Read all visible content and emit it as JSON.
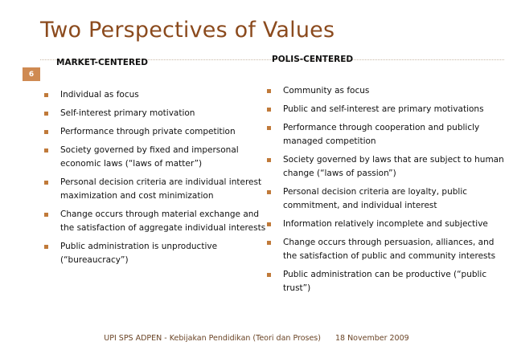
{
  "slide": {
    "title": "Two Perspectives of Values",
    "page_number": "6"
  },
  "left": {
    "heading": "MARKET-CENTERED",
    "items": [
      "Individual as focus",
      "Self-interest primary motivation",
      "Performance through private competition",
      "Society governed by fixed and impersonal economic laws (“laws of matter”)",
      "Personal decision criteria are individual interest maximization and cost minimization",
      "Change occurs through material exchange and the satisfaction of aggregate individual interests",
      "Public administration is unproductive (“bureaucracy”)"
    ]
  },
  "right": {
    "heading": "POLIS-CENTERED",
    "items": [
      "Community as focus",
      "Public and self-interest are primary motivations",
      "Performance through cooperation and publicly managed competition",
      "Society governed by laws that are subject to human change (“laws of passion”)",
      "Personal decision criteria are loyalty, public commitment, and individual interest",
      "Information relatively incomplete and subjective",
      "Change occurs through persuasion, alliances, and the satisfaction of public and community interests",
      "Public administration can be productive (“public trust”)"
    ]
  },
  "footer": {
    "source": "UPI SPS ADPEN - Kebijakan Pendidikan (Teori dan Proses)",
    "date": "18 November 2009"
  },
  "colors": {
    "title": "#8b4a1d",
    "accent": "#cf8a52",
    "bullet": "#c07a3a"
  }
}
